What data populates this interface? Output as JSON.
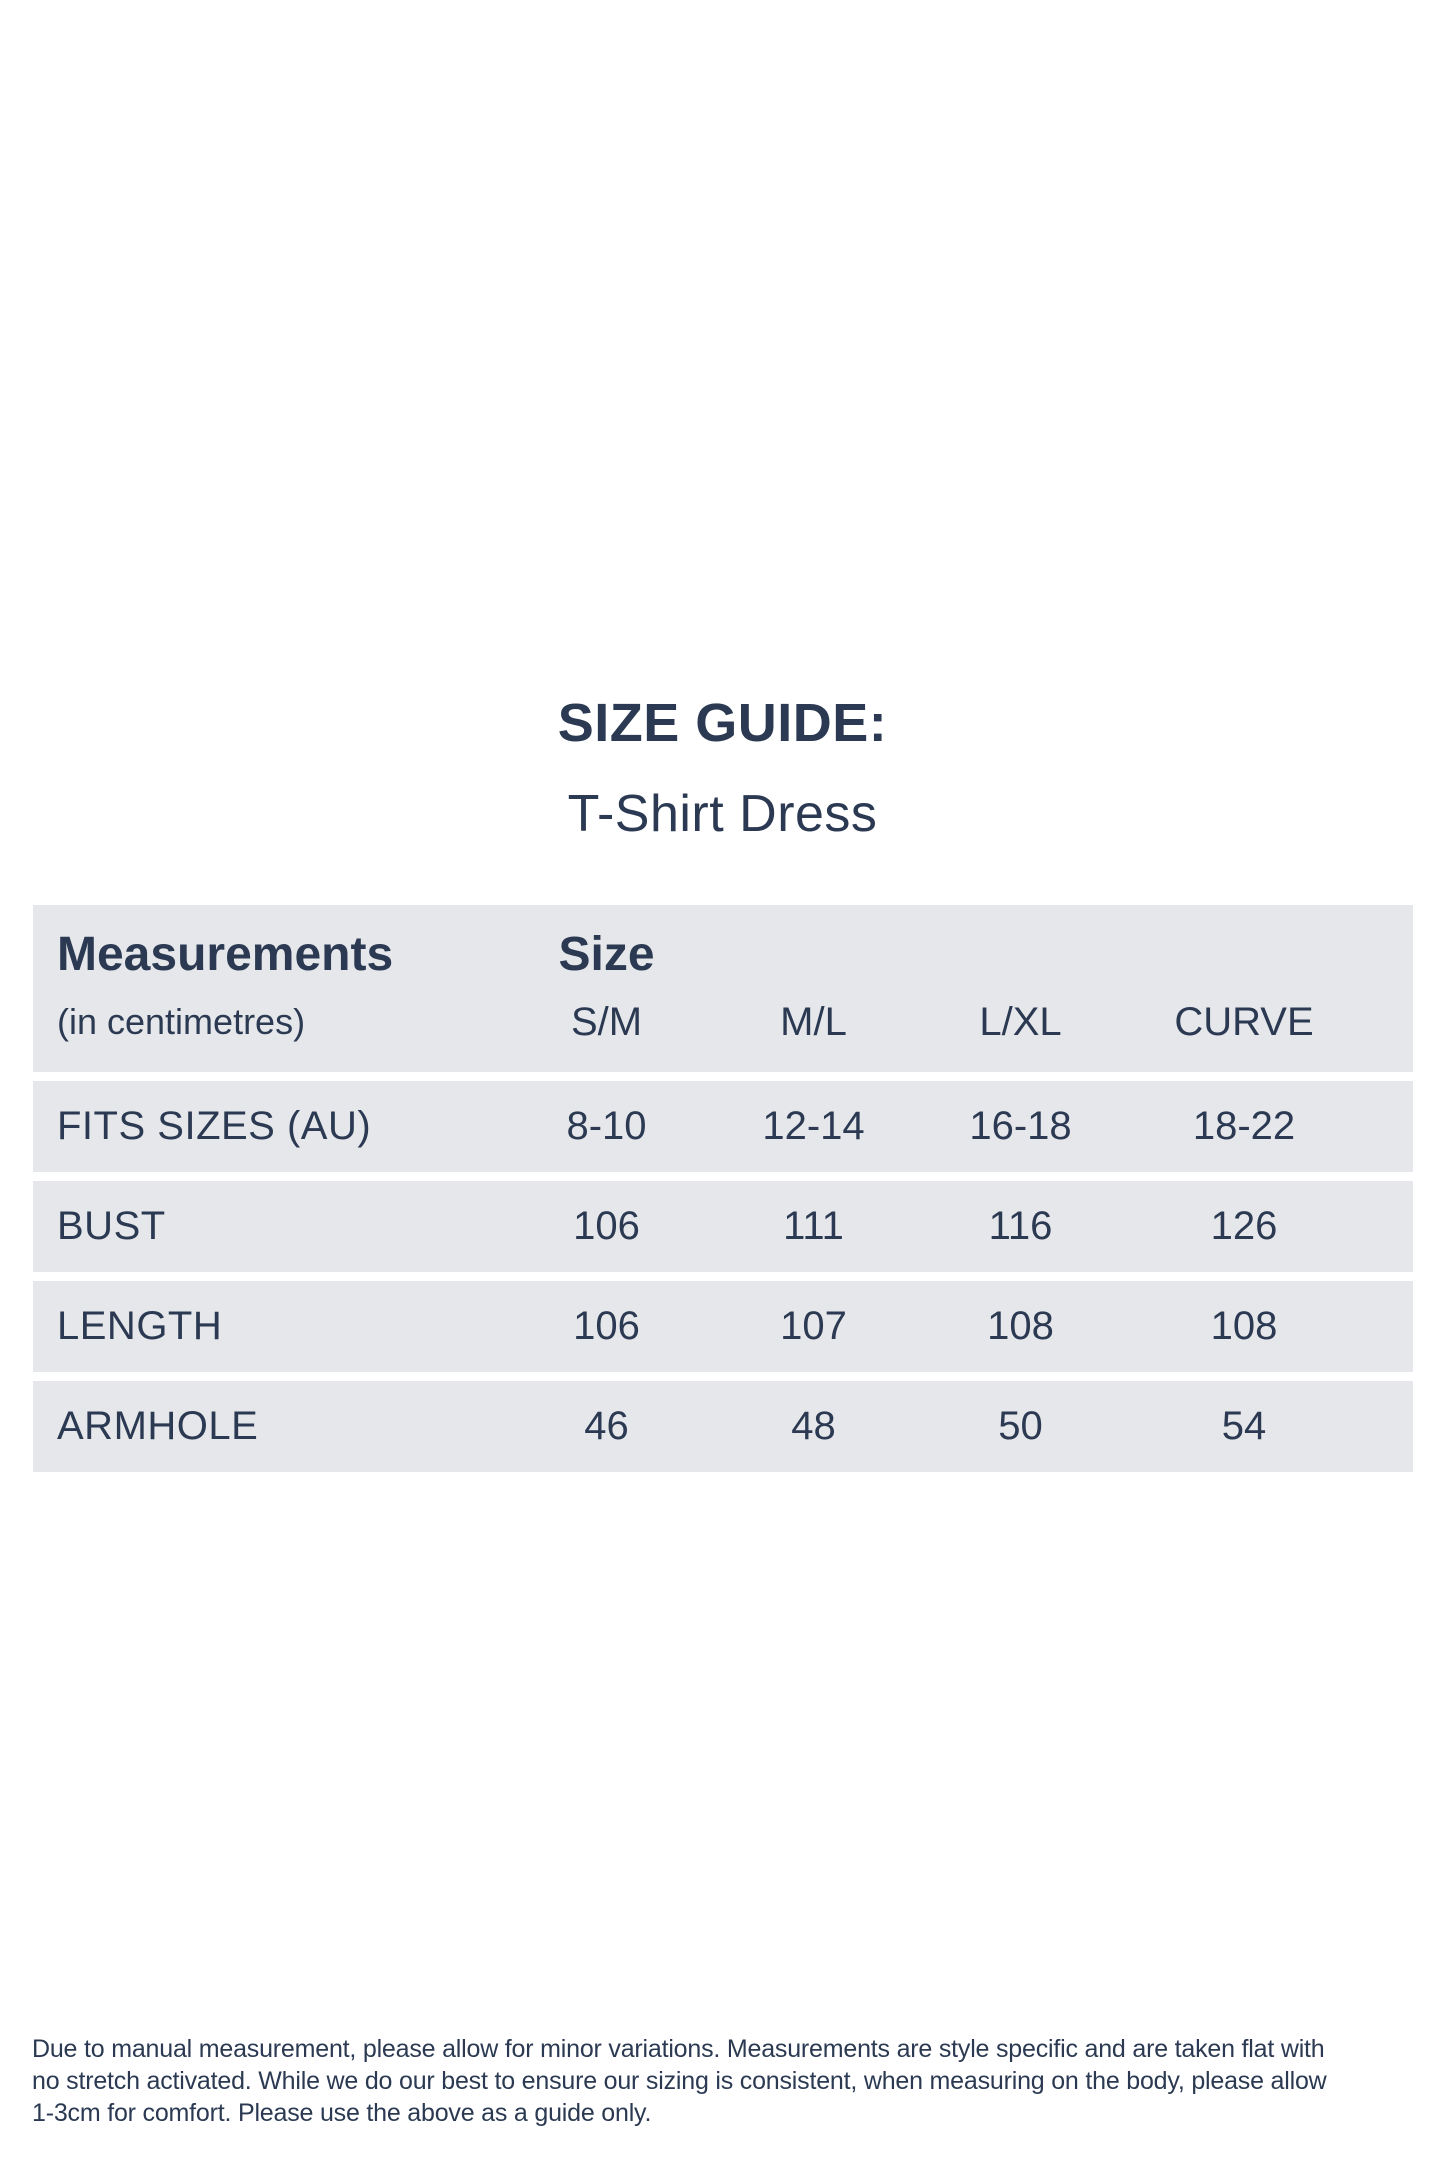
{
  "page": {
    "title": "SIZE GUIDE:",
    "subtitle": "T-Shirt Dress"
  },
  "table": {
    "header": {
      "measurements_label": "Measurements",
      "measurements_sublabel": "(in centimetres)",
      "size_label": "Size",
      "size_columns": [
        "S/M",
        "M/L",
        "L/XL",
        "CURVE"
      ]
    },
    "rows": [
      {
        "label": "FITS SIZES (AU)",
        "values": [
          "8-10",
          "12-14",
          "16-18",
          "18-22"
        ]
      },
      {
        "label": "BUST",
        "values": [
          "106",
          "111",
          "116",
          "126"
        ]
      },
      {
        "label": "LENGTH",
        "values": [
          "106",
          "107",
          "108",
          "108"
        ]
      },
      {
        "label": "ARMHOLE",
        "values": [
          "46",
          "48",
          "50",
          "54"
        ]
      }
    ]
  },
  "footer": {
    "lines": [
      "Due to manual measurement, please allow for minor variations. Measurements are style specific and are taken flat with",
      "no stretch activated. While we do our best to ensure our sizing is consistent, when measuring on the body, please allow",
      "1-3cm for comfort. Please use the above as a guide only."
    ]
  },
  "colors": {
    "text_navy": "#2b3a52",
    "row_background": "#e6e7ea",
    "page_background": "#ffffff"
  }
}
